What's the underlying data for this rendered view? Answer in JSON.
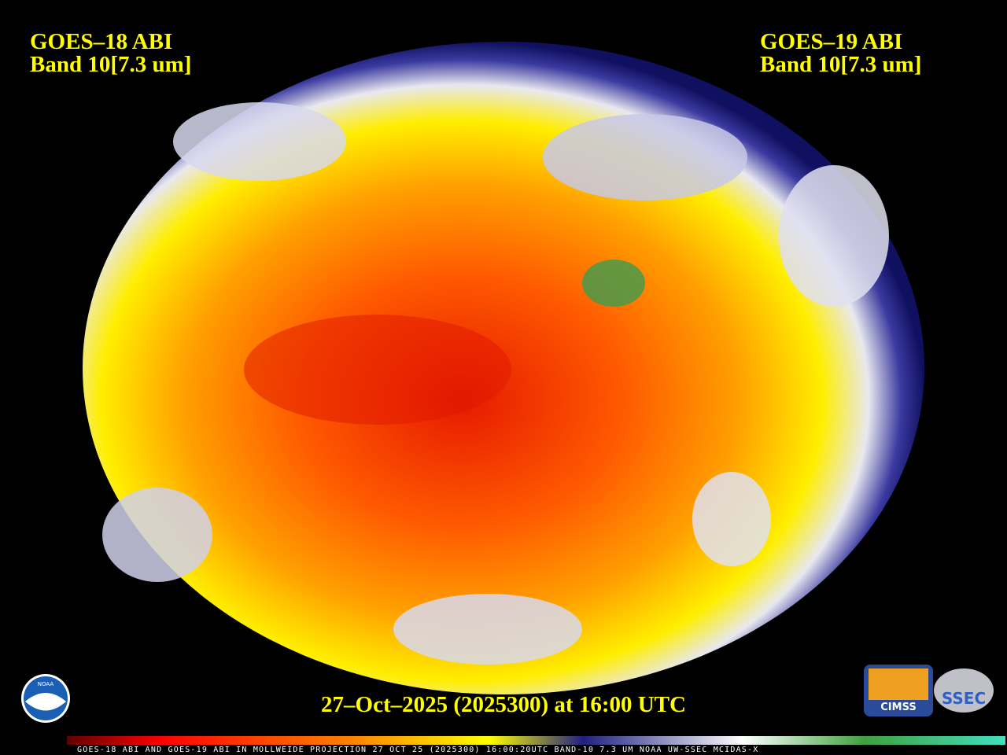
{
  "left_label": {
    "satellite": "GOES–18 ABI",
    "band": "Band 10[7.3 um]"
  },
  "right_label": {
    "satellite": "GOES–19 ABI",
    "band": "Band 10[7.3 um]"
  },
  "timestamp": "27–Oct–2025 (2025300) at 16:00 UTC",
  "colorbar_caption": "GOES-18 ABI AND GOES-19 ABI IN MOLLWEIDE PROJECTION 27 OCT 25 (2025300) 16:00:20UTC BAND-10 7.3 UM NOAA UW-SSEC MCIDAS-X",
  "logos": {
    "noaa": "NOAA",
    "cimss": "CIMSS",
    "ssec": "SSEC"
  }
}
